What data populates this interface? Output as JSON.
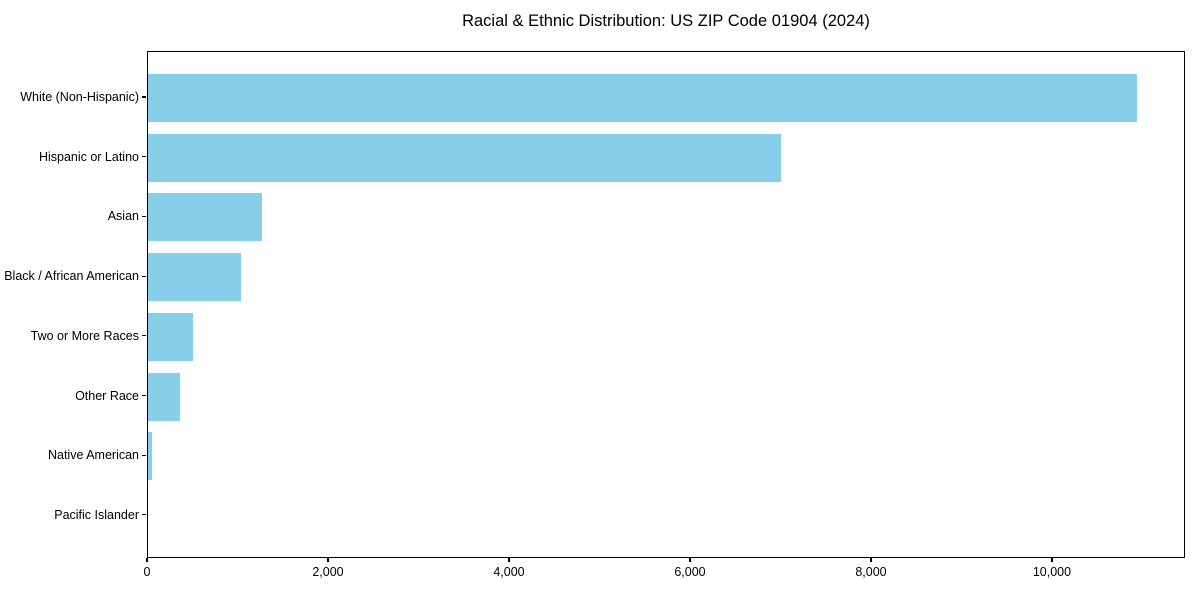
{
  "chart_data": {
    "type": "bar",
    "orientation": "horizontal",
    "title": "Racial & Ethnic Distribution: US ZIP Code 01904 (2024)",
    "categories": [
      "White (Non-Hispanic)",
      "Hispanic or Latino",
      "Asian",
      "Black / African American",
      "Two or More Races",
      "Other Race",
      "Native American",
      "Pacific Islander"
    ],
    "values": [
      10925,
      7000,
      1255,
      1025,
      500,
      355,
      40,
      0
    ],
    "xlabel": "",
    "ylabel": "",
    "xlim": [
      0,
      11470
    ],
    "x_ticks": [
      0,
      2000,
      4000,
      6000,
      8000,
      10000
    ],
    "x_tick_labels": [
      "0",
      "2,000",
      "4,000",
      "6,000",
      "8,000",
      "10,000"
    ],
    "bar_color": "#87CEEB",
    "background": "#FFFFFF",
    "text_color": "#000000",
    "grid": false,
    "legend": null
  }
}
